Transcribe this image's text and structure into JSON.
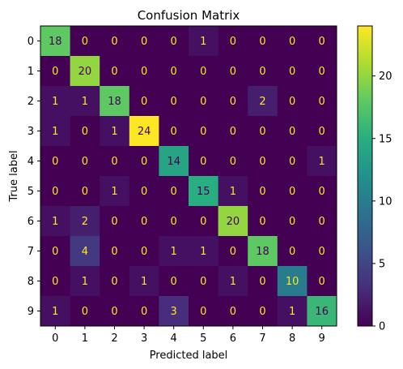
{
  "chart_data": {
    "type": "heatmap",
    "title": "Confusion Matrix",
    "xlabel": "Predicted label",
    "ylabel": "True label",
    "x_categories": [
      "0",
      "1",
      "2",
      "3",
      "4",
      "5",
      "6",
      "7",
      "8",
      "9"
    ],
    "y_categories": [
      "0",
      "1",
      "2",
      "3",
      "4",
      "5",
      "6",
      "7",
      "8",
      "9"
    ],
    "matrix": [
      [
        18,
        0,
        0,
        0,
        0,
        1,
        0,
        0,
        0,
        0
      ],
      [
        0,
        20,
        0,
        0,
        0,
        0,
        0,
        0,
        0,
        0
      ],
      [
        1,
        1,
        18,
        0,
        0,
        0,
        0,
        2,
        0,
        0
      ],
      [
        1,
        0,
        1,
        24,
        0,
        0,
        0,
        0,
        0,
        0
      ],
      [
        0,
        0,
        0,
        0,
        14,
        0,
        0,
        0,
        0,
        1
      ],
      [
        0,
        0,
        1,
        0,
        0,
        15,
        1,
        0,
        0,
        0
      ],
      [
        1,
        2,
        0,
        0,
        0,
        0,
        20,
        0,
        0,
        0
      ],
      [
        0,
        4,
        0,
        0,
        1,
        1,
        0,
        18,
        0,
        0
      ],
      [
        0,
        1,
        0,
        1,
        0,
        0,
        1,
        0,
        10,
        0
      ],
      [
        1,
        0,
        0,
        0,
        3,
        0,
        0,
        0,
        1,
        16
      ]
    ],
    "colormap": "viridis",
    "colorbar": {
      "range": [
        0,
        24
      ],
      "ticks": [
        0,
        5,
        10,
        15,
        20
      ]
    },
    "annotation_colors": {
      "on_dark": "#fde725",
      "on_light": "#440154"
    },
    "grid": false
  }
}
